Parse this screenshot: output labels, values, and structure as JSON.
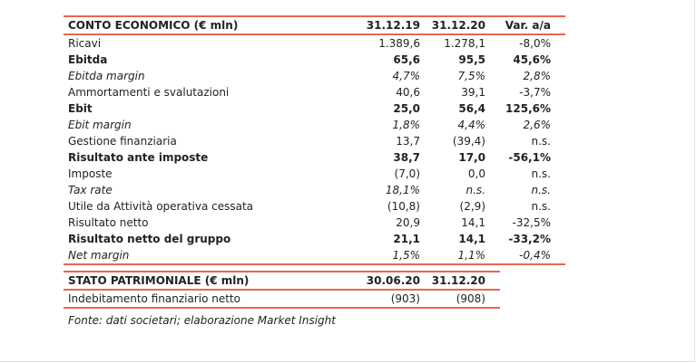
{
  "tables": [
    {
      "header": [
        "CONTO ECONOMICO (€ mln)",
        "31.12.19",
        "31.12.20",
        "Var. a/a"
      ],
      "rows": [
        {
          "cells": [
            "Ricavi",
            "1.389,6",
            "1.278,1",
            "-8,0%"
          ]
        },
        {
          "cells": [
            "Ebitda",
            "65,6",
            "95,5",
            "45,6%"
          ],
          "style": "bold"
        },
        {
          "cells": [
            "Ebitda margin",
            "4,7%",
            "7,5%",
            "2,8%"
          ],
          "style": "italic"
        },
        {
          "cells": [
            "Ammortamenti e svalutazioni",
            "40,6",
            "39,1",
            "-3,7%"
          ]
        },
        {
          "cells": [
            "Ebit",
            "25,0",
            "56,4",
            "125,6%"
          ],
          "style": "bold"
        },
        {
          "cells": [
            "Ebit margin",
            "1,8%",
            "4,4%",
            "2,6%"
          ],
          "style": "italic"
        },
        {
          "cells": [
            "Gestione finanziaria",
            "13,7",
            "(39,4)",
            "n.s."
          ]
        },
        {
          "cells": [
            "Risultato ante imposte",
            "38,7",
            "17,0",
            "-56,1%"
          ],
          "style": "bold"
        },
        {
          "cells": [
            "Imposte",
            "(7,0)",
            "0,0",
            "n.s."
          ]
        },
        {
          "cells": [
            "Tax rate",
            "18,1%",
            "n.s.",
            "n.s."
          ],
          "style": "italic"
        },
        {
          "cells": [
            "Utile da Attività operativa cessata",
            "(10,8)",
            "(2,9)",
            "n.s."
          ]
        },
        {
          "cells": [
            "Risultato netto",
            "20,9",
            "14,1",
            "-32,5%"
          ]
        },
        {
          "cells": [
            "Risultato netto del gruppo",
            "21,1",
            "14,1",
            "-33,2%"
          ],
          "style": "bold"
        },
        {
          "cells": [
            "Net margin",
            "1,5%",
            "1,1%",
            "-0,4%"
          ],
          "style": "italic"
        }
      ]
    },
    {
      "header": [
        "STATO PATRIMONIALE (€ mln)",
        "30.06.20",
        "31.12.20"
      ],
      "rows": [
        {
          "cells": [
            "Indebitamento finanziario netto",
            "(903)",
            "(908)"
          ]
        }
      ]
    }
  ],
  "footnote": "Fonte: dati societari; elaborazione Market Insight"
}
